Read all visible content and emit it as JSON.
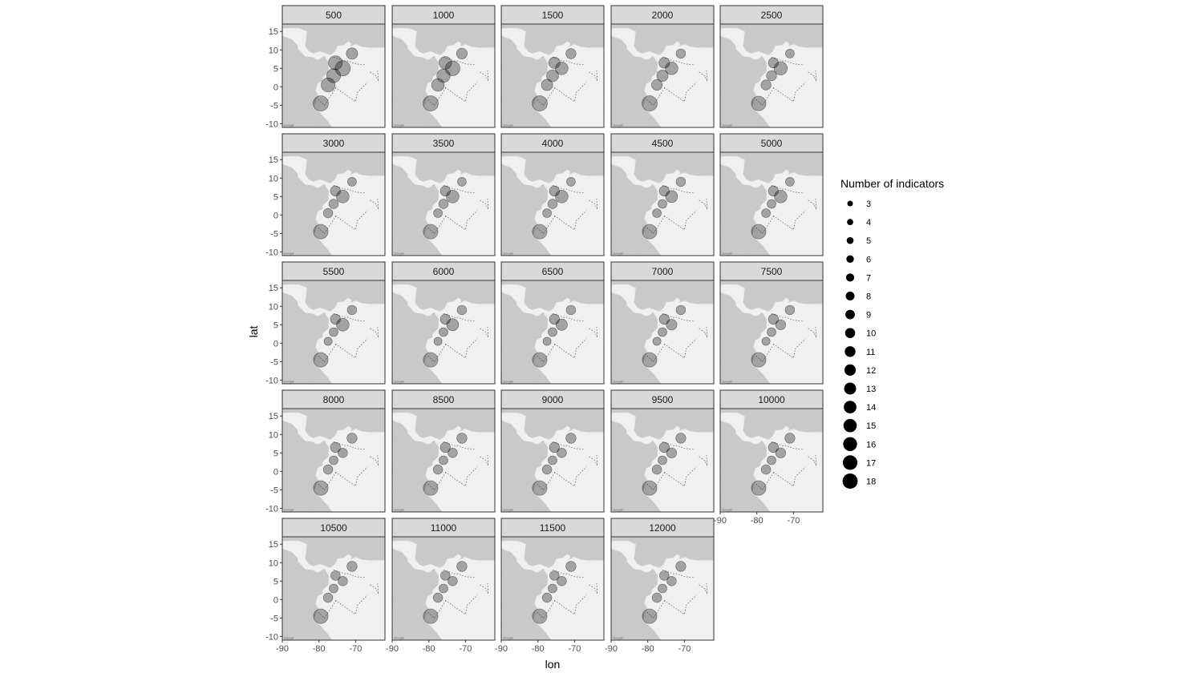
{
  "chart_data": {
    "type": "scatter",
    "xlabel": "lon",
    "ylabel": "lat",
    "xlim": [
      -90,
      -62
    ],
    "ylim": [
      -11,
      17
    ],
    "x_ticks": [
      -90,
      -80,
      -70
    ],
    "x_tick_labels": [
      "-90",
      "-80",
      "-70"
    ],
    "y_ticks": [
      15,
      10,
      5,
      0,
      -5,
      -10
    ],
    "y_tick_labels": [
      "15",
      "10",
      "5",
      "0",
      "-5",
      "-10"
    ],
    "facets": [
      "500",
      "1000",
      "1500",
      "2000",
      "2500",
      "3000",
      "3500",
      "4000",
      "4500",
      "5000",
      "5500",
      "6000",
      "6500",
      "7000",
      "7500",
      "8000",
      "8500",
      "9000",
      "9500",
      "10000",
      "10500",
      "11000",
      "11500",
      "12000"
    ],
    "sites": [
      {
        "lon": -71,
        "lat": 9
      },
      {
        "lon": -75.5,
        "lat": 6.5
      },
      {
        "lon": -73.5,
        "lat": 5
      },
      {
        "lon": -76,
        "lat": 3
      },
      {
        "lon": -77.5,
        "lat": 0.5
      },
      {
        "lon": -79.5,
        "lat": -4.5
      }
    ],
    "facet_values": [
      [
        12,
        16,
        18,
        16,
        16,
        18
      ],
      [
        11,
        14,
        17,
        15,
        14,
        18
      ],
      [
        10,
        12,
        14,
        13,
        12,
        18
      ],
      [
        9,
        11,
        14,
        12,
        11,
        18
      ],
      [
        8,
        10,
        15,
        10,
        10,
        17
      ],
      [
        8,
        10,
        14,
        9,
        9,
        17
      ],
      [
        8,
        10,
        14,
        9,
        8,
        17
      ],
      [
        8,
        10,
        14,
        9,
        8,
        17
      ],
      [
        9,
        10,
        13,
        8,
        8,
        17
      ],
      [
        8,
        10,
        14,
        8,
        8,
        17
      ],
      [
        9,
        10,
        14,
        8,
        7,
        17
      ],
      [
        9,
        10,
        13,
        8,
        7,
        17
      ],
      [
        9,
        10,
        12,
        8,
        7,
        17
      ],
      [
        9,
        10,
        11,
        8,
        7,
        17
      ],
      [
        9,
        10,
        10,
        8,
        7,
        17
      ],
      [
        10,
        10,
        9,
        8,
        9,
        17
      ],
      [
        10,
        10,
        9,
        8,
        9,
        17
      ],
      [
        10,
        10,
        9,
        8,
        9,
        17
      ],
      [
        10,
        10,
        10,
        8,
        9,
        17
      ],
      [
        10,
        10,
        10,
        8,
        9,
        17
      ],
      [
        10,
        9,
        9,
        8,
        9,
        17
      ],
      [
        10,
        9,
        9,
        8,
        9,
        17
      ],
      [
        10,
        9,
        9,
        8,
        9,
        17
      ],
      [
        10,
        9,
        9,
        8,
        9,
        17
      ]
    ],
    "legend": {
      "title": "Number of indicators",
      "position": "right",
      "entries": [
        "3",
        "4",
        "5",
        "6",
        "7",
        "8",
        "9",
        "10",
        "11",
        "12",
        "13",
        "14",
        "15",
        "16",
        "17",
        "18"
      ]
    },
    "map_attribution": "Google",
    "colors": {
      "point": "#000000",
      "ocean": "#c8c8c8",
      "land": "#f0f0f0",
      "strip": "#d9d9d9"
    }
  }
}
